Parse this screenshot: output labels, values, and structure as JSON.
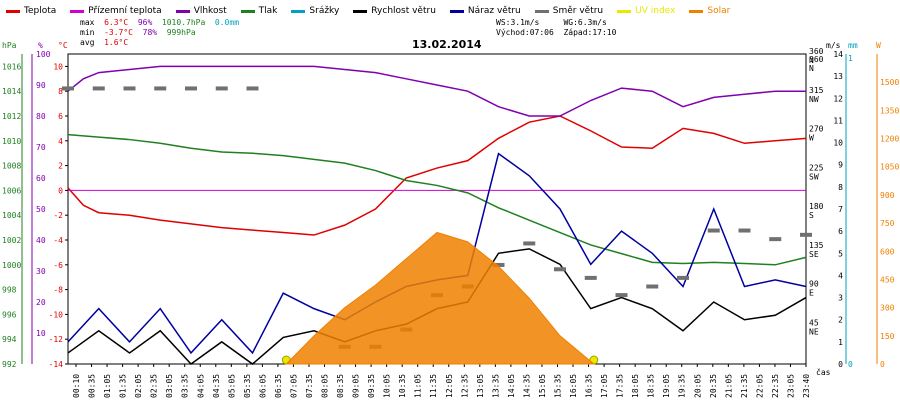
{
  "legend": [
    {
      "label": "Teplota",
      "color": "#e00000"
    },
    {
      "label": "Přízemní teplota",
      "color": "#d000d0"
    },
    {
      "label": "Vlhkost",
      "color": "#8000b0"
    },
    {
      "label": "Tlak",
      "color": "#208020"
    },
    {
      "label": "Srážky",
      "color": "#00a0c0"
    },
    {
      "label": "Rychlost větru",
      "color": "#000000"
    },
    {
      "label": "Náraz větru",
      "color": "#0000a0"
    },
    {
      "label": "Směr větru",
      "color": "#707070"
    },
    {
      "label": "UV index",
      "color": "#e8e800"
    },
    {
      "label": "Solar",
      "color": "#f08000"
    }
  ],
  "stats": {
    "max_label": "max",
    "max_temp": "6.3°C",
    "max_hum": "96%",
    "max_press": "1010.7hPa",
    "max_rain": "0.0mm",
    "min_label": "min",
    "min_temp": "-3.7°C",
    "min_hum": "78%",
    "min_press": "999hPa",
    "avg_label": "avg",
    "avg_temp": "1.6°C",
    "ws": "WS:3.1m/s",
    "wg": "WG:6.3m/s",
    "sunrise": "Východ:07:06",
    "sunset": "Západ:17:10"
  },
  "chart_data": {
    "type": "line",
    "title": "13.02.2014",
    "xlabel": "čas",
    "axes_units": [
      "hPa",
      "%",
      "°C",
      "m/s",
      "mm",
      "W"
    ],
    "x_ticks": [
      "00:10",
      "00:35",
      "01:05",
      "01:35",
      "02:05",
      "02:35",
      "03:05",
      "03:35",
      "04:05",
      "04:35",
      "05:05",
      "05:35",
      "06:05",
      "06:35",
      "07:05",
      "07:35",
      "08:05",
      "08:35",
      "09:05",
      "09:35",
      "10:05",
      "10:35",
      "11:05",
      "11:35",
      "12:05",
      "12:35",
      "13:05",
      "13:35",
      "14:05",
      "14:35",
      "15:05",
      "15:35",
      "16:05",
      "16:35",
      "17:05",
      "17:35",
      "18:05",
      "18:35",
      "19:05",
      "19:35",
      "20:05",
      "20:35",
      "21:05",
      "21:35",
      "22:05",
      "22:35",
      "23:05",
      "23:40"
    ],
    "y_axes": {
      "pressure_hpa": {
        "ticks": [
          "992",
          "994",
          "996",
          "998",
          "1000",
          "1002",
          "1004",
          "1006",
          "1008",
          "1010",
          "1012",
          "1014",
          "1016"
        ],
        "ylim": [
          992,
          1017
        ]
      },
      "humidity_pct": {
        "ticks": [
          "10",
          "20",
          "30",
          "40",
          "50",
          "60",
          "70",
          "80",
          "90",
          "100"
        ],
        "ylim": [
          0,
          100
        ]
      },
      "temperature_c": {
        "ticks": [
          "-14",
          "-12",
          "-10",
          "-8",
          "-6",
          "-4",
          "-2",
          "0",
          "2",
          "4",
          "6",
          "8",
          "10"
        ],
        "ylim": [
          -14,
          11
        ]
      },
      "wind_dir": {
        "ticks": [
          "45 NE",
          "90 E",
          "135 SE",
          "180 S",
          "225 SW",
          "270 W",
          "315 NW",
          "360 N"
        ]
      },
      "wind_ms": {
        "ticks": [
          "0",
          "1",
          "2",
          "3",
          "4",
          "5",
          "6",
          "7",
          "8",
          "9",
          "10",
          "11",
          "12",
          "13",
          "14"
        ],
        "ylim": [
          0,
          14
        ]
      },
      "rain_mm": {
        "ticks": [
          "0",
          "1"
        ]
      },
      "solar_w": {
        "ticks": [
          "0",
          "150",
          "300",
          "450",
          "600",
          "750",
          "900",
          "1050",
          "1200",
          "1350",
          "1500"
        ],
        "ylim": [
          0,
          1650
        ]
      }
    },
    "series": [
      {
        "name": "Teplota",
        "color": "#e00000",
        "axis": "temperature_c",
        "x": [
          0,
          0.5,
          1,
          2,
          3,
          4,
          5,
          6,
          7,
          8,
          9,
          10,
          11,
          12,
          13,
          14,
          15,
          16,
          17,
          18,
          19,
          20,
          21,
          22,
          23,
          24
        ],
        "values": [
          0.2,
          -1.2,
          -1.8,
          -2.0,
          -2.4,
          -2.7,
          -3.0,
          -3.2,
          -3.4,
          -3.6,
          -2.8,
          -1.5,
          1.0,
          1.8,
          2.4,
          4.2,
          5.5,
          6.0,
          4.8,
          3.5,
          3.4,
          5.0,
          4.6,
          3.8,
          4.0,
          4.2
        ]
      },
      {
        "name": "Přízemní teplota",
        "color": "#d000d0",
        "axis": "temperature_c",
        "x": [
          0,
          24
        ],
        "values": [
          0,
          0
        ]
      },
      {
        "name": "Vlhkost",
        "color": "#8000b0",
        "axis": "humidity_pct",
        "x": [
          0,
          0.5,
          1,
          2,
          3,
          4,
          5,
          6,
          7,
          8,
          9,
          10,
          11,
          12,
          13,
          14,
          15,
          16,
          17,
          18,
          19,
          20,
          21,
          22,
          23,
          24
        ],
        "values": [
          88,
          92,
          94,
          95,
          96,
          96,
          96,
          96,
          96,
          96,
          95,
          94,
          92,
          90,
          88,
          83,
          80,
          80,
          85,
          89,
          88,
          83,
          86,
          87,
          88,
          88
        ]
      },
      {
        "name": "Tlak",
        "color": "#208020",
        "axis": "pressure_hpa",
        "x": [
          0,
          0.5,
          1,
          2,
          3,
          4,
          5,
          6,
          7,
          8,
          9,
          10,
          11,
          12,
          13,
          14,
          15,
          16,
          17,
          18,
          19,
          20,
          21,
          22,
          23,
          24
        ],
        "values": [
          1010.5,
          1010.4,
          1010.3,
          1010.1,
          1009.8,
          1009.4,
          1009.1,
          1009.0,
          1008.8,
          1008.5,
          1008.2,
          1007.6,
          1006.8,
          1006.4,
          1005.8,
          1004.6,
          1003.6,
          1002.6,
          1001.6,
          1000.9,
          1000.2,
          1000.1,
          1000.2,
          1000.1,
          1000.0,
          1000.6
        ]
      },
      {
        "name": "Rychlost větru",
        "color": "#000000",
        "axis": "wind_ms",
        "x": [
          0,
          1,
          2,
          3,
          4,
          5,
          6,
          7,
          8,
          9,
          10,
          11,
          12,
          13,
          14,
          15,
          16,
          17,
          18,
          19,
          20,
          21,
          22,
          23,
          24
        ],
        "values": [
          0.5,
          1.5,
          0.5,
          1.5,
          0,
          1.0,
          0,
          1.2,
          1.5,
          1.0,
          1.5,
          1.8,
          2.5,
          2.8,
          5.0,
          5.2,
          4.5,
          2.5,
          3.0,
          2.5,
          1.5,
          2.8,
          2.0,
          2.2,
          3.0
        ]
      },
      {
        "name": "Náraz větru",
        "color": "#0000a0",
        "axis": "wind_ms",
        "x": [
          0,
          1,
          2,
          3,
          4,
          5,
          6,
          7,
          8,
          9,
          10,
          11,
          12,
          13,
          14,
          15,
          16,
          17,
          18,
          19,
          20,
          21,
          22,
          23,
          24
        ],
        "values": [
          1.0,
          2.5,
          1.0,
          2.5,
          0.5,
          2.0,
          0.5,
          3.2,
          2.5,
          2.0,
          2.8,
          3.5,
          3.8,
          4.0,
          9.5,
          8.5,
          7.0,
          4.5,
          6.0,
          5.0,
          3.5,
          7.0,
          3.5,
          3.8,
          3.5
        ]
      },
      {
        "name": "Směr větru",
        "color": "#707070",
        "axis": "wind_dir",
        "x": [
          0,
          1,
          2,
          3,
          4,
          5,
          6,
          7,
          8,
          9,
          10,
          11,
          12,
          13,
          14,
          15,
          16,
          17,
          18,
          19,
          20,
          21,
          22,
          23,
          24
        ],
        "values": [
          320,
          320,
          320,
          320,
          320,
          320,
          320,
          null,
          null,
          20,
          20,
          40,
          80,
          90,
          115,
          140,
          110,
          100,
          80,
          90,
          100,
          155,
          155,
          145,
          150
        ]
      },
      {
        "name": "UV index",
        "color": "#e8e800",
        "axis": "solar_w",
        "x": [
          7.1,
          17.1
        ],
        "values": [
          0,
          0
        ]
      },
      {
        "name": "Solar",
        "color": "#f08000",
        "axis": "solar_w",
        "x": [
          7.1,
          8,
          9,
          10,
          11,
          12,
          13,
          14,
          15,
          16,
          17.1
        ],
        "values": [
          0,
          150,
          300,
          420,
          560,
          700,
          650,
          520,
          350,
          150,
          0
        ]
      }
    ]
  }
}
